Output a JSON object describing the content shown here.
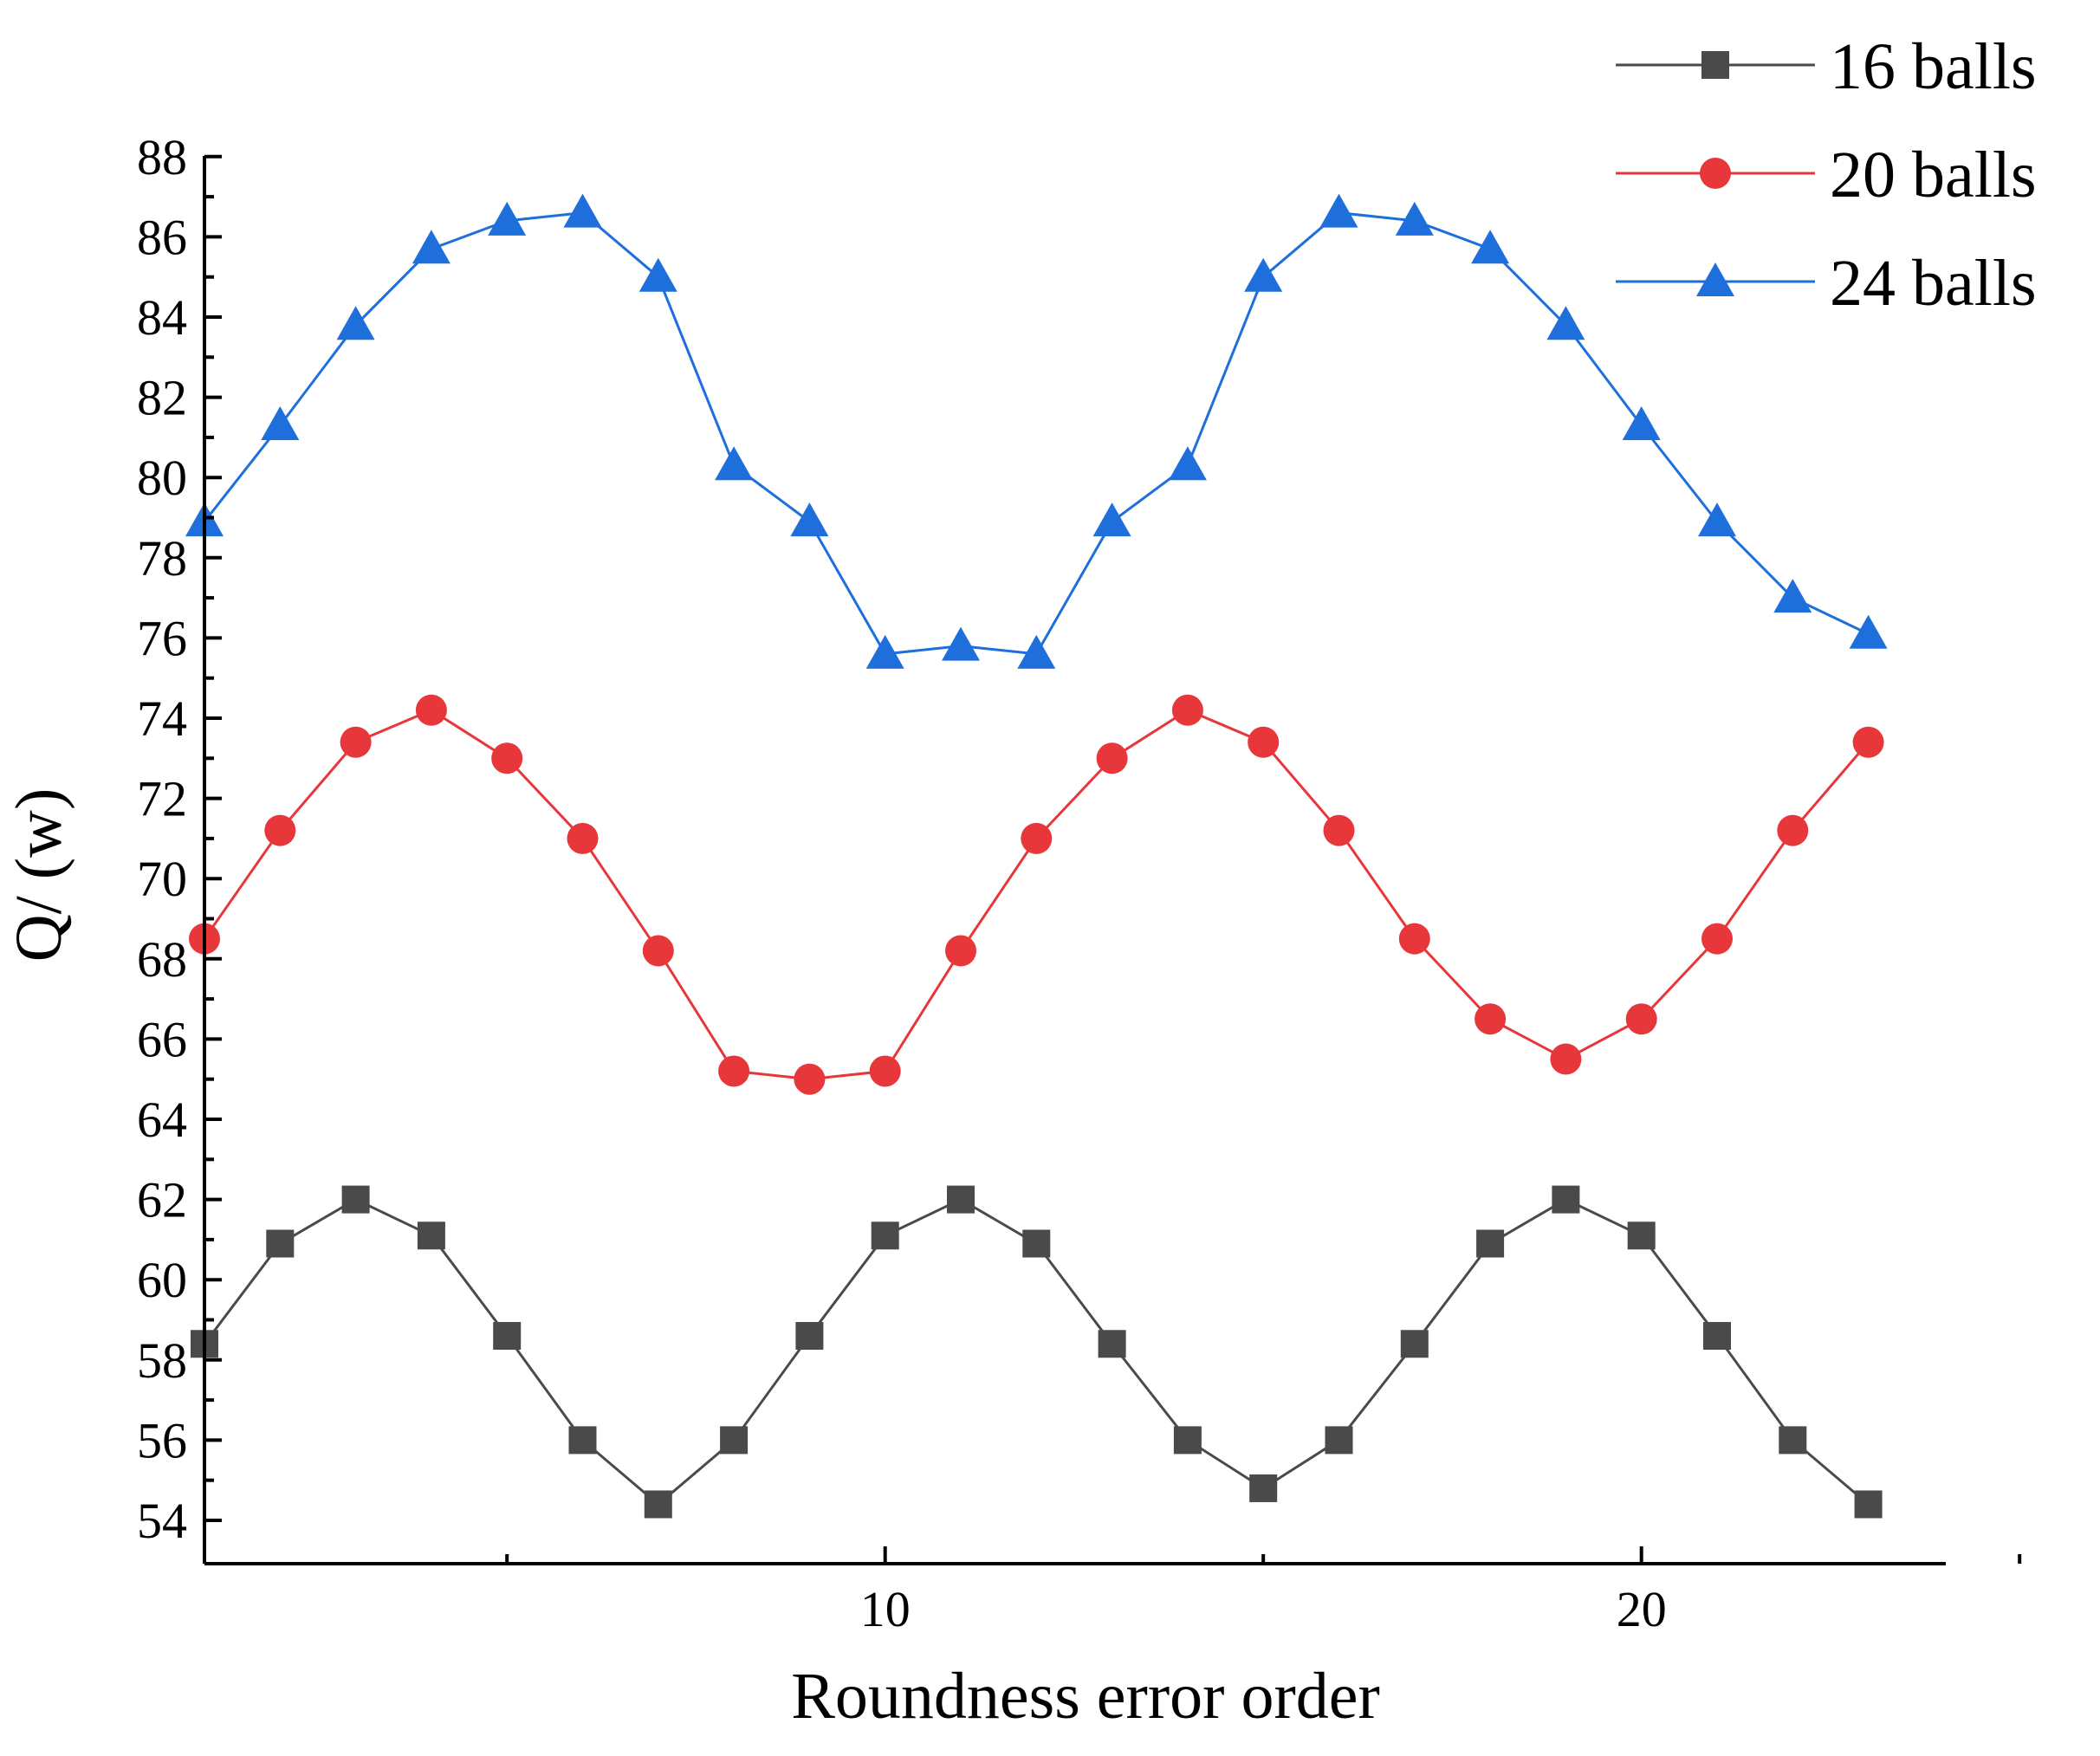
{
  "chart_data": {
    "type": "line",
    "xlabel": "Roundness error order",
    "ylabel": "Q/ (w)",
    "xlim": [
      1,
      24
    ],
    "ylim": [
      53,
      88
    ],
    "x_major_ticks": [
      10,
      20
    ],
    "y_major_ticks": [
      54,
      56,
      58,
      60,
      62,
      64,
      66,
      68,
      70,
      72,
      74,
      76,
      78,
      80,
      82,
      84,
      86,
      88
    ],
    "legend_position": "top-right",
    "grid": false,
    "x": [
      1,
      2,
      3,
      4,
      5,
      6,
      7,
      8,
      9,
      10,
      11,
      12,
      13,
      14,
      15,
      16,
      17,
      18,
      19,
      20,
      21,
      22,
      23
    ],
    "series": [
      {
        "name": "16 balls",
        "color": "#4a4a4a",
        "marker": "square",
        "values": [
          58.4,
          60.9,
          62.0,
          61.1,
          58.6,
          56.0,
          54.4,
          56.0,
          58.6,
          61.1,
          62.0,
          60.9,
          58.4,
          56.0,
          54.8,
          56.0,
          58.4,
          60.9,
          62.0,
          61.1,
          58.6,
          56.0,
          54.4
        ]
      },
      {
        "name": "20 balls",
        "color": "#e8373a",
        "marker": "circle",
        "values": [
          68.5,
          71.2,
          73.4,
          74.2,
          73.0,
          71.0,
          68.2,
          65.2,
          65.0,
          65.2,
          68.2,
          71.0,
          73.0,
          74.2,
          73.4,
          71.2,
          68.5,
          66.5,
          65.5,
          66.5,
          68.5,
          71.2,
          73.4
        ]
      },
      {
        "name": "24 balls",
        "color": "#1e6fdc",
        "marker": "triangle",
        "values": [
          78.9,
          81.3,
          83.8,
          85.7,
          86.4,
          86.6,
          85.0,
          80.3,
          78.9,
          75.6,
          75.8,
          75.6,
          78.9,
          80.3,
          85.0,
          86.6,
          86.4,
          85.7,
          83.8,
          81.3,
          78.9,
          77.0,
          76.1
        ]
      }
    ]
  }
}
